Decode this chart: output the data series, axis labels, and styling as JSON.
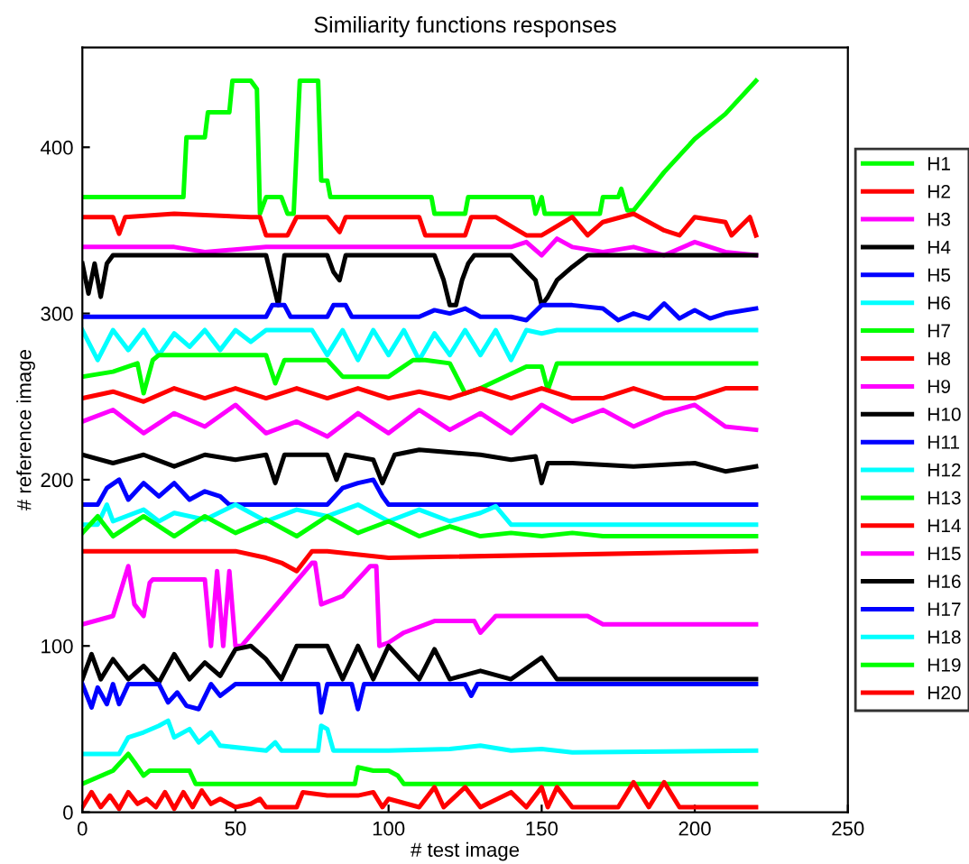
{
  "chart_data": {
    "type": "line",
    "title": "Similiarity functions responses",
    "xlabel": "# test image",
    "ylabel": "# reference image",
    "xlim": [
      0,
      250
    ],
    "ylim": [
      0,
      460
    ],
    "xticks": [
      0,
      50,
      100,
      150,
      200,
      250
    ],
    "yticks": [
      0,
      100,
      200,
      300,
      400
    ],
    "legend": "right",
    "series": [
      {
        "name": "H1",
        "color": "#00ff00",
        "x": [
          0,
          33,
          34,
          40,
          41,
          48,
          49,
          55,
          57,
          58,
          60,
          65,
          67,
          69,
          71,
          77,
          78,
          80,
          81,
          114,
          115,
          125,
          126,
          147,
          148,
          150,
          151,
          169,
          170,
          175,
          176,
          178,
          180,
          190,
          200,
          210,
          220
        ],
        "values": [
          370,
          370,
          406,
          406,
          421,
          421,
          440,
          440,
          435,
          360,
          370,
          370,
          360,
          360,
          440,
          440,
          380,
          380,
          370,
          370,
          360,
          360,
          370,
          370,
          360,
          370,
          360,
          360,
          370,
          370,
          375,
          362,
          362,
          385,
          405,
          420,
          440
        ]
      },
      {
        "name": "H2",
        "color": "#ff0000",
        "x": [
          0,
          10,
          12,
          14,
          30,
          55,
          58,
          60,
          67,
          70,
          80,
          84,
          86,
          100,
          110,
          112,
          125,
          127,
          132,
          135,
          145,
          150,
          160,
          165,
          170,
          180,
          190,
          195,
          200,
          210,
          212,
          218,
          220
        ],
        "values": [
          358,
          358,
          348,
          358,
          360,
          358,
          358,
          347,
          347,
          358,
          358,
          349,
          358,
          358,
          358,
          347,
          347,
          358,
          358,
          358,
          347,
          347,
          358,
          347,
          355,
          360,
          350,
          347,
          358,
          355,
          347,
          358,
          347
        ]
      },
      {
        "name": "H3",
        "color": "#ff00ff",
        "x": [
          0,
          30,
          40,
          60,
          80,
          100,
          140,
          145,
          150,
          155,
          160,
          170,
          180,
          190,
          200,
          210,
          220
        ],
        "values": [
          340,
          340,
          337,
          340,
          340,
          340,
          340,
          343,
          335,
          345,
          340,
          337,
          340,
          335,
          343,
          337,
          335
        ]
      },
      {
        "name": "H4",
        "color": "#000000",
        "x": [
          0,
          2,
          4,
          6,
          8,
          10,
          60,
          62,
          64,
          66,
          80,
          82,
          84,
          86,
          115,
          118,
          120,
          122,
          124,
          126,
          128,
          130,
          140,
          148,
          150,
          152,
          155,
          160,
          165,
          220
        ],
        "values": [
          330,
          312,
          330,
          310,
          330,
          335,
          335,
          320,
          305,
          335,
          335,
          325,
          320,
          335,
          335,
          320,
          305,
          305,
          320,
          330,
          335,
          335,
          335,
          320,
          305,
          310,
          320,
          328,
          335,
          335
        ]
      },
      {
        "name": "H5",
        "color": "#0000ff",
        "x": [
          0,
          60,
          62,
          66,
          68,
          80,
          82,
          86,
          88,
          110,
          115,
          120,
          125,
          130,
          140,
          145,
          150,
          155,
          160,
          170,
          175,
          180,
          185,
          190,
          195,
          200,
          205,
          210,
          220
        ],
        "values": [
          298,
          298,
          305,
          305,
          298,
          298,
          305,
          305,
          298,
          298,
          302,
          300,
          303,
          298,
          298,
          296,
          305,
          305,
          305,
          303,
          296,
          300,
          297,
          306,
          297,
          302,
          297,
          300,
          303
        ]
      },
      {
        "name": "H6",
        "color": "#00ffff",
        "x": [
          0,
          5,
          10,
          15,
          20,
          25,
          30,
          35,
          40,
          45,
          50,
          55,
          60,
          65,
          70,
          75,
          80,
          85,
          90,
          95,
          100,
          105,
          110,
          115,
          120,
          125,
          130,
          135,
          140,
          145,
          150,
          155,
          220
        ],
        "values": [
          290,
          272,
          290,
          278,
          290,
          275,
          288,
          280,
          290,
          278,
          290,
          283,
          290,
          290,
          290,
          290,
          275,
          290,
          272,
          290,
          275,
          290,
          272,
          288,
          275,
          290,
          275,
          290,
          272,
          290,
          288,
          290,
          290
        ]
      },
      {
        "name": "H7",
        "color": "#00ff00",
        "x": [
          0,
          10,
          18,
          20,
          23,
          25,
          40,
          60,
          63,
          66,
          80,
          85,
          100,
          108,
          112,
          120,
          125,
          130,
          145,
          150,
          152,
          155,
          220
        ],
        "values": [
          262,
          265,
          270,
          252,
          272,
          275,
          275,
          275,
          258,
          272,
          272,
          262,
          262,
          272,
          272,
          270,
          252,
          255,
          268,
          268,
          254,
          270,
          270
        ]
      },
      {
        "name": "H8",
        "color": "#ff0000",
        "x": [
          0,
          10,
          20,
          30,
          40,
          50,
          60,
          70,
          80,
          90,
          100,
          110,
          120,
          130,
          140,
          150,
          160,
          170,
          180,
          190,
          200,
          210,
          220
        ],
        "values": [
          249,
          253,
          247,
          255,
          249,
          255,
          249,
          255,
          249,
          255,
          249,
          253,
          249,
          255,
          249,
          255,
          249,
          249,
          255,
          249,
          249,
          255,
          255
        ]
      },
      {
        "name": "H9",
        "color": "#ff00ff",
        "x": [
          0,
          10,
          20,
          30,
          40,
          50,
          60,
          70,
          80,
          90,
          100,
          110,
          120,
          130,
          140,
          150,
          160,
          170,
          180,
          190,
          200,
          210,
          220
        ],
        "values": [
          235,
          242,
          228,
          240,
          232,
          245,
          228,
          235,
          226,
          240,
          228,
          242,
          230,
          240,
          228,
          245,
          235,
          242,
          232,
          240,
          245,
          232,
          230
        ]
      },
      {
        "name": "H10",
        "color": "#000000",
        "x": [
          0,
          10,
          20,
          30,
          40,
          50,
          60,
          63,
          66,
          80,
          83,
          86,
          95,
          98,
          102,
          110,
          130,
          140,
          148,
          150,
          152,
          160,
          180,
          200,
          210,
          220
        ],
        "values": [
          215,
          210,
          215,
          208,
          215,
          212,
          215,
          198,
          215,
          215,
          200,
          215,
          212,
          198,
          215,
          218,
          215,
          212,
          214,
          198,
          210,
          210,
          208,
          210,
          205,
          208
        ]
      },
      {
        "name": "H11",
        "color": "#0000ff",
        "x": [
          0,
          5,
          8,
          12,
          15,
          20,
          25,
          30,
          35,
          40,
          45,
          48,
          80,
          85,
          90,
          95,
          98,
          100,
          220
        ],
        "values": [
          185,
          185,
          195,
          200,
          188,
          198,
          190,
          198,
          188,
          193,
          190,
          185,
          185,
          195,
          198,
          200,
          190,
          185,
          185
        ]
      },
      {
        "name": "H12",
        "color": "#00ffff",
        "x": [
          0,
          5,
          8,
          10,
          20,
          25,
          30,
          40,
          50,
          60,
          70,
          80,
          90,
          100,
          110,
          120,
          130,
          135,
          140,
          160,
          220
        ],
        "values": [
          173,
          173,
          185,
          175,
          182,
          175,
          180,
          176,
          185,
          175,
          182,
          178,
          185,
          175,
          182,
          175,
          180,
          184,
          173,
          173,
          173
        ]
      },
      {
        "name": "H13",
        "color": "#00ff00",
        "x": [
          0,
          5,
          10,
          20,
          30,
          40,
          50,
          60,
          70,
          80,
          90,
          100,
          110,
          120,
          130,
          140,
          150,
          160,
          170,
          220
        ],
        "values": [
          168,
          178,
          166,
          178,
          166,
          178,
          168,
          176,
          166,
          178,
          168,
          175,
          166,
          172,
          166,
          168,
          166,
          168,
          166,
          166
        ]
      },
      {
        "name": "H14",
        "color": "#ff0000",
        "x": [
          0,
          50,
          60,
          65,
          70,
          75,
          80,
          100,
          220
        ],
        "values": [
          157,
          157,
          153,
          150,
          145,
          157,
          157,
          153,
          157
        ]
      },
      {
        "name": "H15",
        "color": "#ff00ff",
        "x": [
          0,
          10,
          15,
          17,
          20,
          22,
          23,
          40,
          42,
          44,
          46,
          48,
          50,
          52,
          75,
          76,
          78,
          85,
          90,
          94,
          96,
          97,
          100,
          105,
          115,
          128,
          130,
          135,
          150,
          165,
          170,
          220
        ],
        "values": [
          113,
          118,
          148,
          125,
          118,
          138,
          140,
          140,
          100,
          145,
          100,
          145,
          100,
          100,
          150,
          150,
          125,
          130,
          140,
          148,
          148,
          100,
          102,
          108,
          115,
          115,
          108,
          118,
          118,
          118,
          113,
          113
        ]
      },
      {
        "name": "H16",
        "color": "#000000",
        "x": [
          0,
          3,
          6,
          10,
          15,
          20,
          25,
          30,
          35,
          40,
          45,
          50,
          55,
          60,
          65,
          70,
          80,
          85,
          90,
          95,
          100,
          110,
          115,
          120,
          130,
          140,
          150,
          155,
          160,
          220
        ],
        "values": [
          80,
          95,
          80,
          92,
          80,
          88,
          78,
          95,
          80,
          90,
          82,
          98,
          100,
          92,
          80,
          100,
          100,
          80,
          100,
          80,
          100,
          80,
          98,
          80,
          85,
          80,
          93,
          80,
          80,
          80
        ]
      },
      {
        "name": "H17",
        "color": "#0000ff",
        "x": [
          0,
          3,
          5,
          8,
          10,
          12,
          15,
          25,
          28,
          31,
          34,
          38,
          42,
          45,
          50,
          77,
          78,
          80,
          88,
          90,
          92,
          94,
          125,
          127,
          129,
          220
        ],
        "values": [
          77,
          63,
          75,
          65,
          77,
          65,
          77,
          77,
          66,
          72,
          64,
          62,
          77,
          70,
          77,
          77,
          60,
          77,
          77,
          62,
          77,
          77,
          77,
          70,
          77,
          77
        ]
      },
      {
        "name": "H18",
        "color": "#00ffff",
        "x": [
          0,
          12,
          15,
          20,
          25,
          28,
          30,
          35,
          38,
          42,
          45,
          60,
          63,
          65,
          77,
          78,
          80,
          82,
          100,
          120,
          130,
          140,
          150,
          160,
          220
        ],
        "values": [
          35,
          35,
          45,
          48,
          52,
          55,
          45,
          50,
          42,
          48,
          40,
          37,
          42,
          37,
          37,
          52,
          50,
          37,
          37,
          38,
          40,
          37,
          38,
          36,
          37
        ]
      },
      {
        "name": "H19",
        "color": "#00ff00",
        "x": [
          0,
          10,
          15,
          17,
          20,
          22,
          35,
          37,
          40,
          89,
          90,
          95,
          100,
          103,
          105,
          220
        ],
        "values": [
          17,
          25,
          35,
          30,
          22,
          25,
          25,
          17,
          17,
          17,
          27,
          25,
          25,
          22,
          17,
          17
        ]
      },
      {
        "name": "H20",
        "color": "#ff0000",
        "x": [
          0,
          3,
          6,
          9,
          12,
          15,
          18,
          21,
          24,
          27,
          30,
          33,
          36,
          39,
          42,
          45,
          50,
          55,
          58,
          60,
          70,
          72,
          80,
          90,
          95,
          98,
          100,
          110,
          115,
          118,
          125,
          130,
          140,
          145,
          150,
          152,
          155,
          160,
          175,
          180,
          185,
          190,
          195,
          220
        ],
        "values": [
          3,
          12,
          3,
          10,
          2,
          12,
          5,
          8,
          3,
          12,
          2,
          12,
          3,
          13,
          5,
          8,
          3,
          5,
          8,
          3,
          3,
          12,
          10,
          10,
          12,
          3,
          8,
          3,
          15,
          3,
          15,
          3,
          12,
          3,
          15,
          3,
          15,
          3,
          3,
          18,
          3,
          18,
          3,
          3
        ]
      }
    ]
  }
}
